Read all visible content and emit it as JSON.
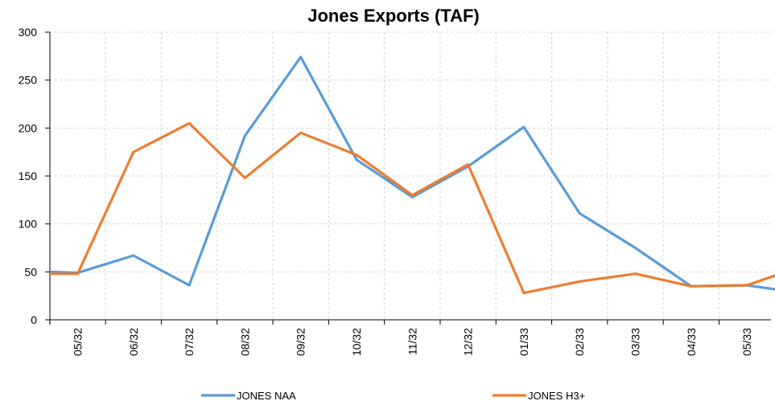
{
  "chart_data": {
    "type": "line",
    "title": "Jones Exports (TAF)",
    "xlabel": "",
    "ylabel": "",
    "ylim": [
      0,
      300
    ],
    "yticks": [
      0,
      50,
      100,
      150,
      200,
      250,
      300
    ],
    "categories": [
      "05/32",
      "06/32",
      "07/32",
      "08/32",
      "09/32",
      "10/32",
      "11/32",
      "12/32",
      "01/33",
      "02/33",
      "03/33",
      "04/33",
      "05/33"
    ],
    "grid": true,
    "legend_position": "bottom",
    "series": [
      {
        "name": "JONES NAA",
        "color": "#5B9BD5",
        "x": [
          -0.5,
          0,
          1,
          2,
          3,
          4,
          5,
          6,
          7,
          8,
          9,
          10,
          11,
          12,
          12.6
        ],
        "y": [
          50,
          49,
          67,
          36,
          192,
          274,
          167,
          128,
          160,
          201,
          111,
          75,
          35,
          36,
          31
        ]
      },
      {
        "name": "JONES H3+",
        "color": "#ED7D31",
        "x": [
          -0.5,
          0,
          1,
          2,
          3,
          4,
          5,
          6,
          7,
          8,
          9,
          10,
          11,
          12,
          12.6
        ],
        "y": [
          48,
          48,
          175,
          205,
          148,
          195,
          172,
          130,
          162,
          28,
          40,
          48,
          35,
          36,
          48
        ]
      }
    ]
  }
}
